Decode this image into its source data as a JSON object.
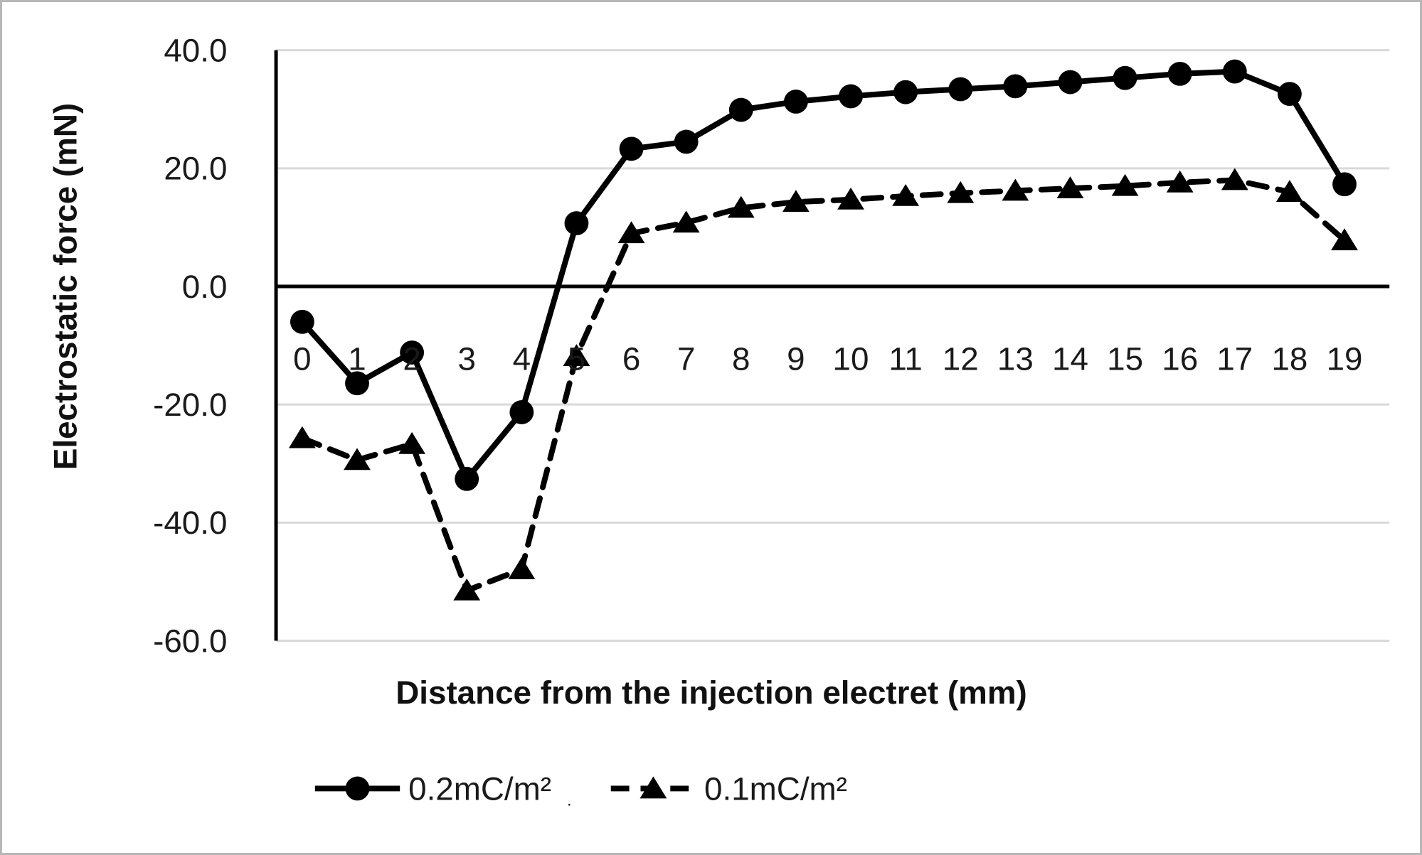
{
  "chart_data": {
    "type": "line",
    "title": "",
    "xlabel": "Distance from the injection electret (mm)",
    "ylabel": "Electrostatic force (mN)",
    "x": [
      0,
      1,
      2,
      3,
      4,
      5,
      6,
      7,
      8,
      9,
      10,
      11,
      12,
      13,
      14,
      15,
      16,
      17,
      18,
      19
    ],
    "series": [
      {
        "name": "0.2mC/m²",
        "trailing_mark": ".",
        "line_style": "solid",
        "marker": "circle",
        "color": "#000000",
        "values": [
          -6.0,
          -16.4,
          -11.2,
          -32.6,
          -21.3,
          10.7,
          23.3,
          24.5,
          29.9,
          31.3,
          32.2,
          32.9,
          33.4,
          33.9,
          34.6,
          35.3,
          36.0,
          36.4,
          32.6,
          17.3
        ]
      },
      {
        "name": "0.1mC/m²",
        "trailing_mark": "",
        "line_style": "dashed",
        "marker": "triangle",
        "color": "#000000",
        "values": [
          -25.7,
          -29.4,
          -26.7,
          -51.5,
          -47.9,
          -11.8,
          9.0,
          10.8,
          13.3,
          14.3,
          14.7,
          15.3,
          15.8,
          16.2,
          16.6,
          17.0,
          17.6,
          18.0,
          16.0,
          7.8
        ]
      }
    ],
    "y_ticks": [
      {
        "label": "40.0",
        "value": 40
      },
      {
        "label": "20.0",
        "value": 20
      },
      {
        "label": "0.0",
        "value": 0
      },
      {
        "label": "-20.0",
        "value": -20
      },
      {
        "label": "-40.0",
        "value": -40
      },
      {
        "label": "-60.0",
        "value": -60
      }
    ],
    "ylim": [
      -60,
      40
    ],
    "grid": "horizontal",
    "legend_position": "bottom",
    "colors": {
      "line": "#000000",
      "gridline": "#d9d9d9",
      "axis": "#000000",
      "text": "#1a1a1a",
      "frame_border": "#b7b7b7",
      "background": "#ffffff"
    }
  }
}
